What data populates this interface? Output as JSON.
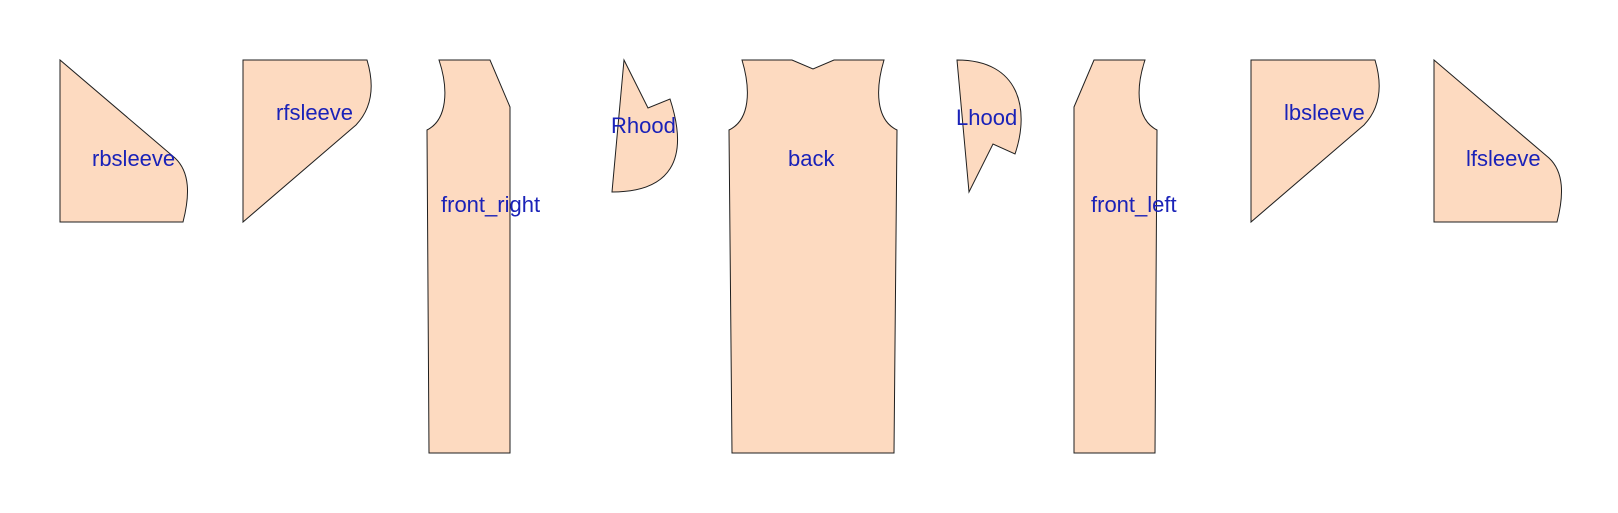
{
  "colors": {
    "piece_fill": "#fddac0",
    "piece_stroke": "#1f1f1f",
    "label_color": "#1a22b8",
    "background": "#ffffff"
  },
  "pieces": {
    "rbsleeve": {
      "label": "rbsleeve"
    },
    "rfsleeve": {
      "label": "rfsleeve"
    },
    "front_right": {
      "label": "front_right"
    },
    "rhood": {
      "label": "Rhood"
    },
    "back": {
      "label": "back"
    },
    "lhood": {
      "label": "Lhood"
    },
    "front_left": {
      "label": "front_left"
    },
    "lbsleeve": {
      "label": "lbsleeve"
    },
    "lfsleeve": {
      "label": "lfsleeve"
    }
  }
}
